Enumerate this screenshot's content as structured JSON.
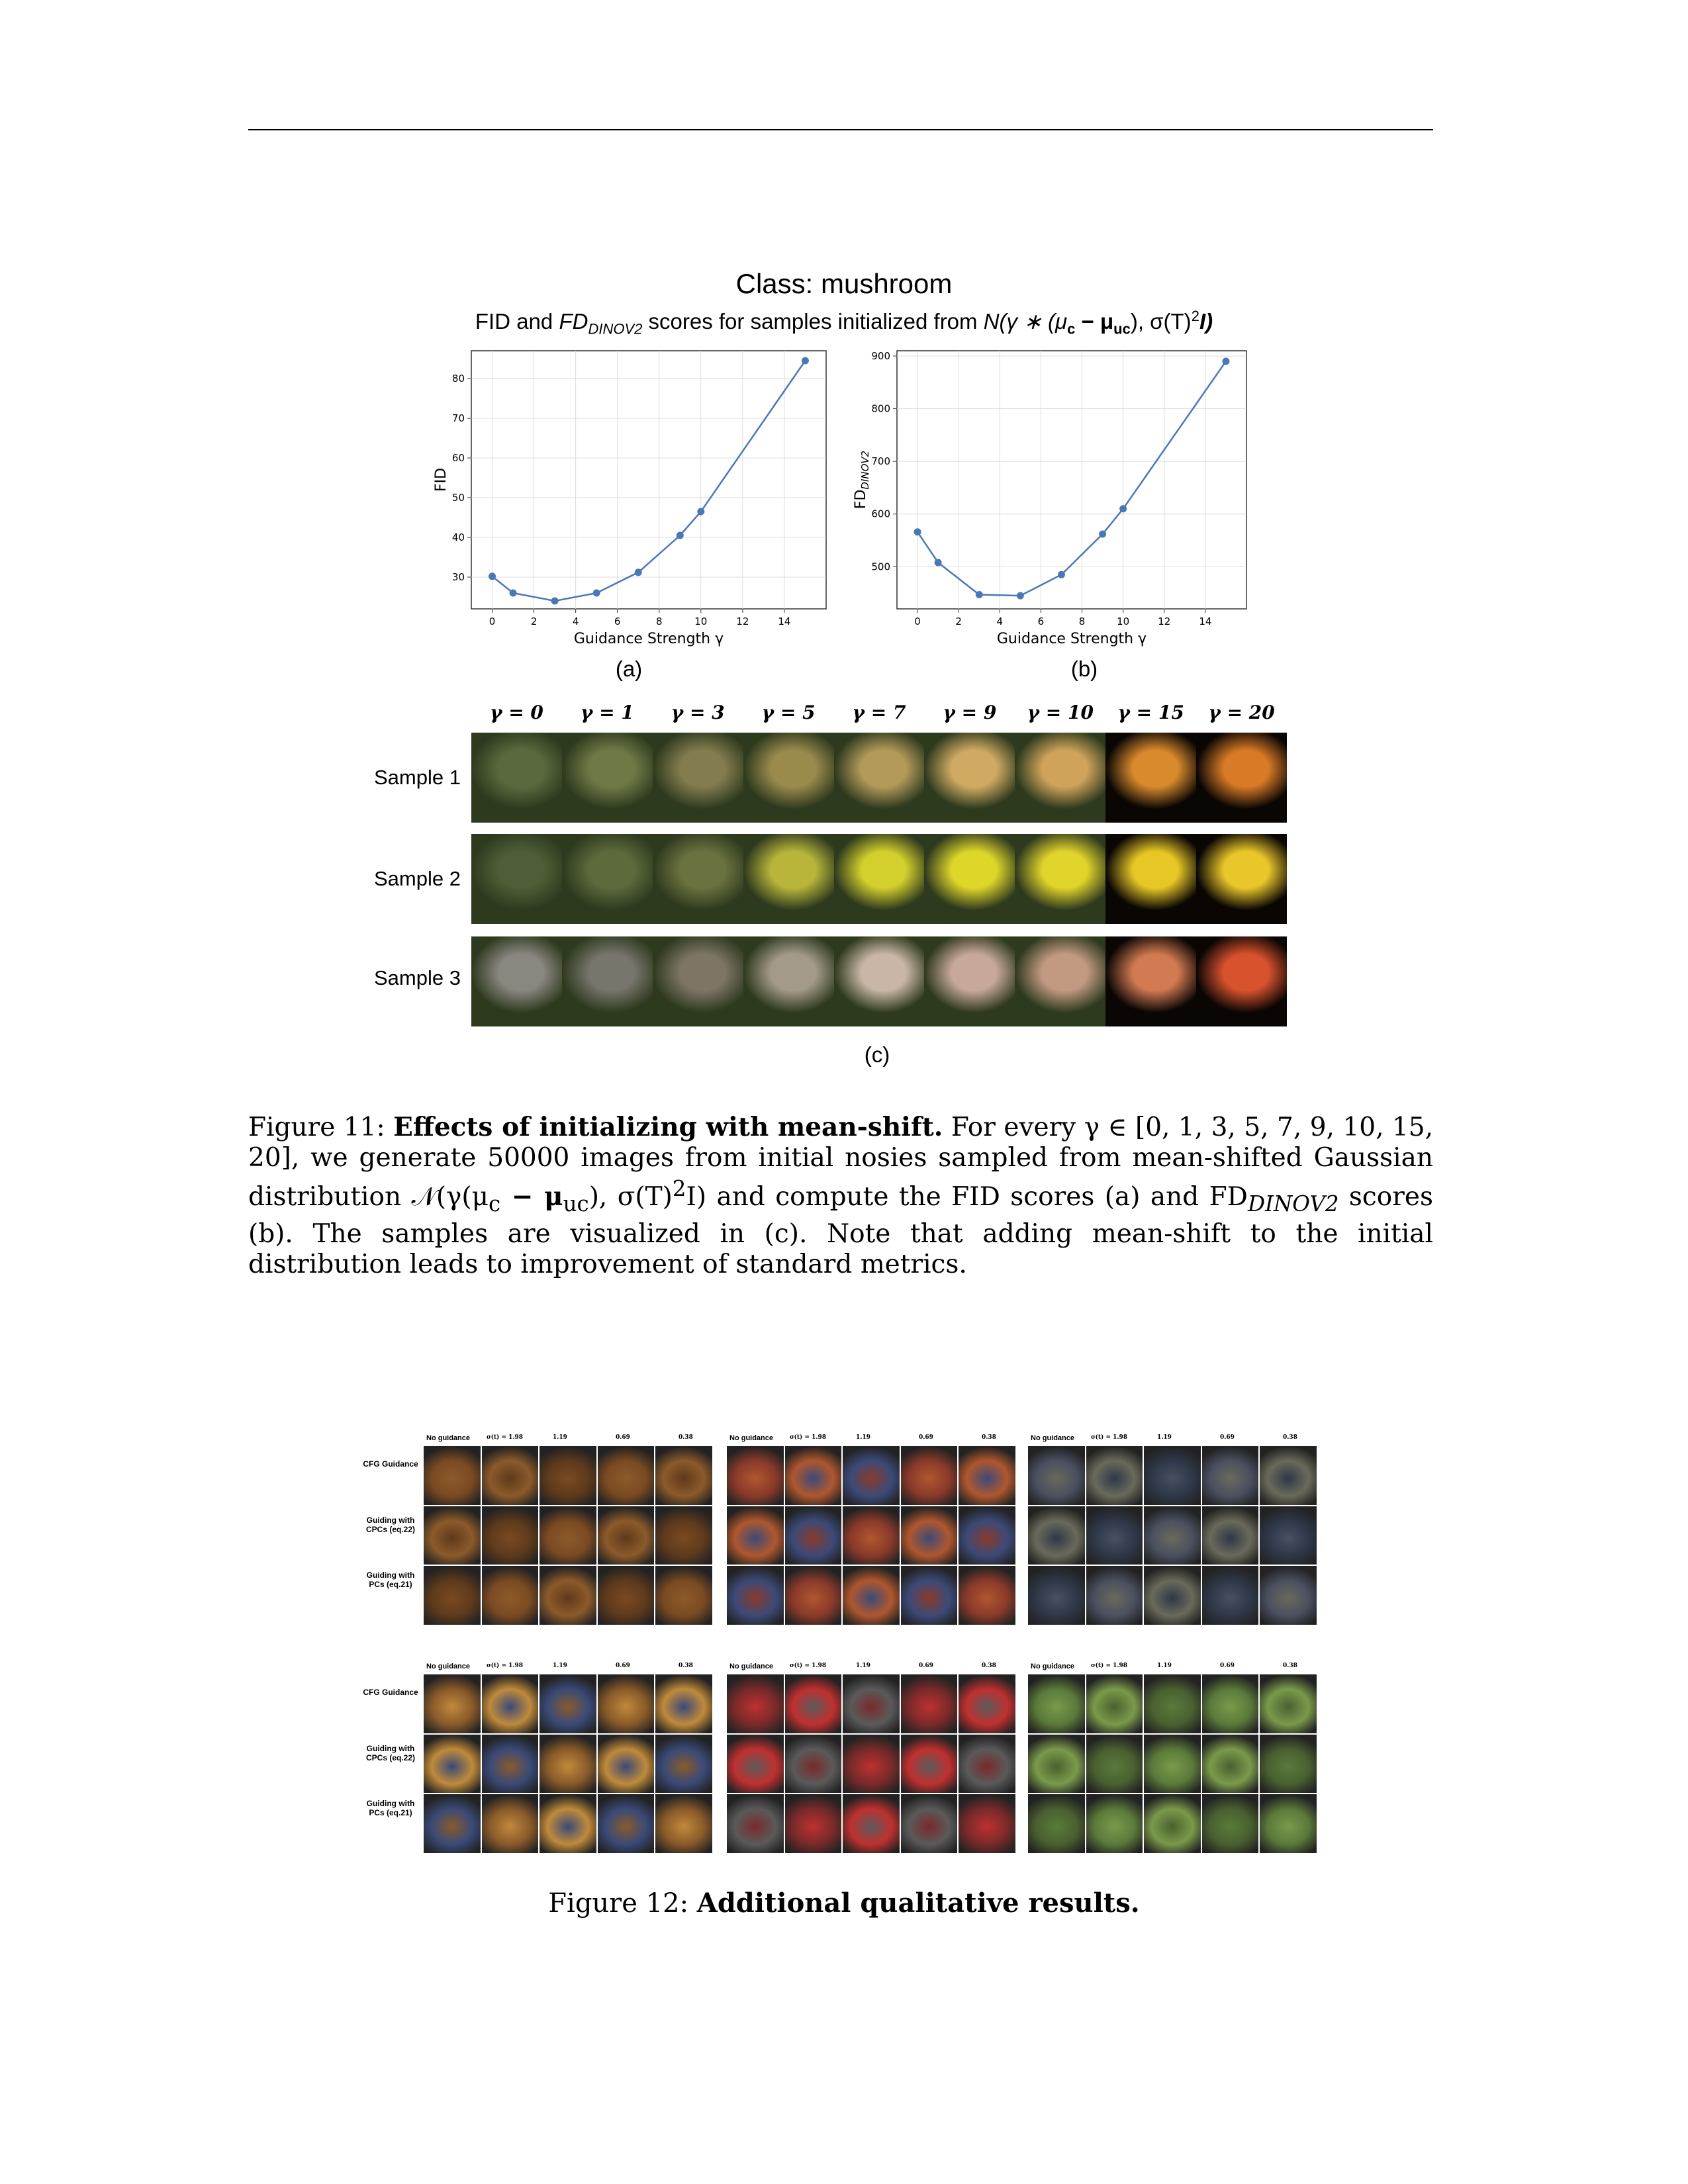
{
  "figure11": {
    "class_title": "Class: mushroom",
    "subtitle": "FID and FD_DINOV2 scores for samples initialized from N(γ ∗ (μ_c − μ_uc), σ(T)²I)",
    "subtitle_parts": {
      "pre": "FID and ",
      "fd": "FD",
      "fd_sub": "DINOV2",
      "post": " scores for samples initialized from ",
      "formula": "N(γ ∗ (μ",
      "c": "c",
      "minus": " − μ",
      "uc": "uc",
      "tail": "), σ(T)",
      "sq": "2",
      "end": "I)"
    },
    "panel_a": "(a)",
    "panel_b": "(b)",
    "panel_c": "(c)",
    "gamma_labels": [
      "γ = 0",
      "γ = 1",
      "γ = 3",
      "γ = 5",
      "γ = 7",
      "γ = 9",
      "γ = 10",
      "γ = 15",
      "γ = 20"
    ],
    "sample_labels": [
      "Sample 1",
      "Sample 2",
      "Sample 3"
    ],
    "sample_colors": [
      [
        "#5b6a3e",
        "#6e7a45",
        "#827c4e",
        "#9a8a4c",
        "#b39a5a",
        "#d0aa62",
        "#cfa35a",
        "#d98a2c",
        "#d87a26"
      ],
      [
        "#4f5e36",
        "#5c6a3c",
        "#6a7240",
        "#b8b53a",
        "#d3cf2c",
        "#dfd62a",
        "#e1d42a",
        "#e6c726",
        "#e9c62a"
      ],
      [
        "#8a8680",
        "#77756c",
        "#7d7566",
        "#a39a8a",
        "#c9b6a6",
        "#c8a898",
        "#c29a82",
        "#d27a52",
        "#d9522e"
      ]
    ],
    "caption": {
      "label": "Figure 11:",
      "bold": "Effects of initializing with mean-shift.",
      "text1": "For every γ ∈ [0, 1, 3, 5, 7, 9, 10, 15, 20], we generate 50000 images from initial nosies sampled from mean-shifted Gaussian distribution 𝒩(γ(μ",
      "c": "c",
      "text2": " − μ",
      "uc": "uc",
      "text3": "), σ(T)",
      "sq": "2",
      "text4": "I) and compute the FID scores (a) and FD",
      "dino": "DINOV2",
      "text5": " scores (b). The samples are visualized in (c). Note that adding mean-shift to the initial distribution leads to improvement of standard metrics."
    }
  },
  "chart_data": [
    {
      "type": "line",
      "title": "",
      "xlabel": "Guidance Strength γ",
      "ylabel": "FID",
      "x": [
        0,
        1,
        3,
        5,
        7,
        9,
        10,
        15
      ],
      "y": [
        30.2,
        26.0,
        24.0,
        26.0,
        31.2,
        40.5,
        46.5,
        84.5
      ],
      "xlim": [
        -1,
        16
      ],
      "ylim": [
        22,
        87
      ],
      "xticks": [
        0,
        2,
        4,
        6,
        8,
        10,
        12,
        14
      ],
      "yticks": [
        30,
        40,
        50,
        60,
        70,
        80
      ],
      "grid": true,
      "color": "#4a78b5"
    },
    {
      "type": "line",
      "title": "",
      "xlabel": "Guidance Strength γ",
      "ylabel": "FD_DINOV2",
      "x": [
        0,
        1,
        3,
        5,
        7,
        9,
        10,
        15
      ],
      "y": [
        566,
        508,
        447,
        445,
        485,
        562,
        610,
        890
      ],
      "xlim": [
        -1,
        16
      ],
      "ylim": [
        420,
        910
      ],
      "xticks": [
        0,
        2,
        4,
        6,
        8,
        10,
        12,
        14
      ],
      "yticks": [
        500,
        600,
        700,
        800,
        900
      ],
      "grid": true,
      "color": "#4a78b5"
    }
  ],
  "figure12": {
    "col_headers": [
      "No guidance",
      "σ(t) = 1.98",
      "1.19",
      "0.69",
      "0.38"
    ],
    "row_labels": [
      "CFG Guidance",
      "Guiding with CPCs (eq.22)",
      "Guiding with PCs (eq.21)"
    ],
    "panel_colors": [
      [
        "#7a4a22",
        "#8c5a2a",
        "#5e3a1c"
      ],
      [
        "#8a3a2a",
        "#b0572e",
        "#3c4a78"
      ],
      [
        "#4a5060",
        "#6a6a5a",
        "#2e3848"
      ],
      [
        "#8a5a2a",
        "#c08a3a",
        "#3a4a78"
      ],
      [
        "#7a2a2a",
        "#c03030",
        "#5a5a5a"
      ],
      [
        "#5a7a3a",
        "#7a9a4a",
        "#4a6030"
      ]
    ],
    "caption": {
      "label": "Figure 12:",
      "bold": "Additional qualitative results."
    }
  }
}
